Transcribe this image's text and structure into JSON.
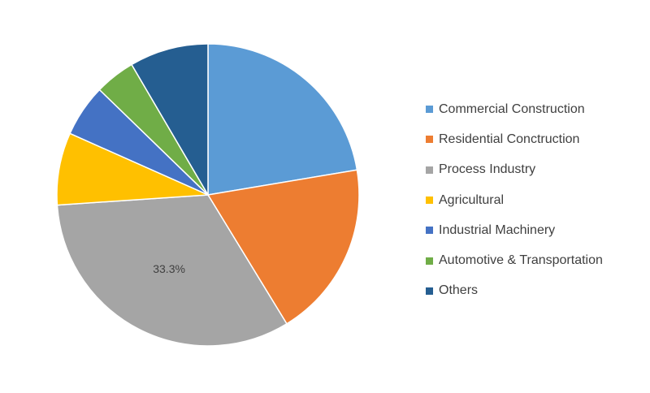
{
  "chart_data": {
    "type": "pie",
    "title": "",
    "categories": [
      "Commercial Construction",
      "Residential Conctruction",
      "Process Industry",
      "Agricultural",
      "Industrial Machinery",
      "Automotive & Transportation",
      "Others"
    ],
    "values": [
      22.8,
      19.3,
      33.3,
      7.9,
      5.7,
      4.4,
      8.6
    ],
    "colors": [
      "#5B9BD5",
      "#ED7D31",
      "#A5A5A5",
      "#FFC000",
      "#4472C4",
      "#70AD47",
      "#255E91"
    ],
    "data_labels": [
      "",
      "",
      "33.3%",
      "",
      "",
      "",
      ""
    ],
    "start_angle_deg": 0,
    "direction": "clockwise",
    "legend_position": "right"
  }
}
